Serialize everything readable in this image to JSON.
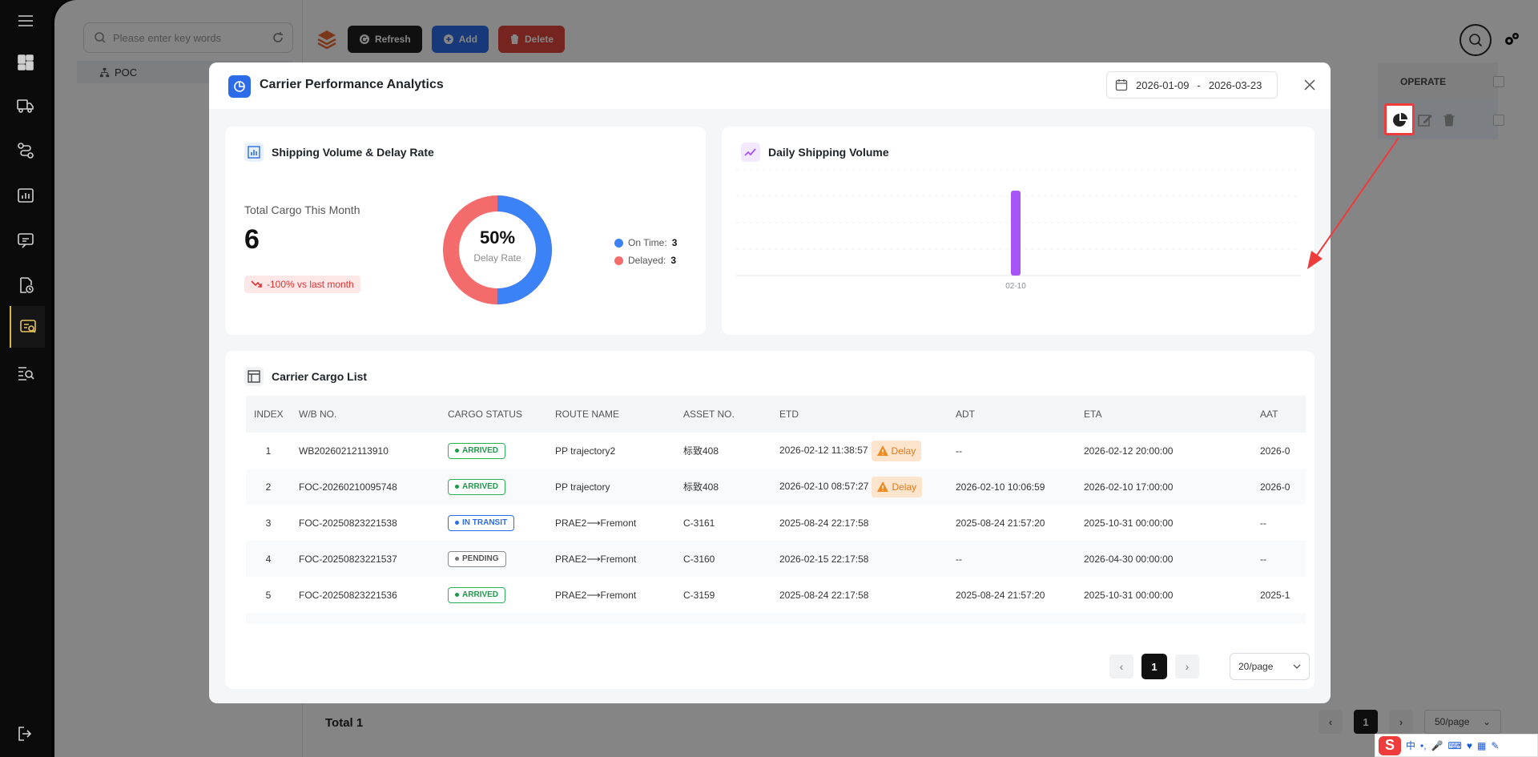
{
  "app": {
    "search_placeholder": "Please enter key words",
    "tree_root": "POC",
    "toolbar": {
      "refresh": "Refresh",
      "add": "Add",
      "delete": "Delete"
    },
    "operate_header": "OPERATE",
    "total": "Total 1",
    "page": "1",
    "page_size": "50/page"
  },
  "modal": {
    "title": "Carrier Performance Analytics",
    "date_start": "2026-01-09",
    "date_sep": "-",
    "date_end": "2026-03-23"
  },
  "summary": {
    "title": "Shipping Volume & Delay Rate",
    "kpi_label": "Total Cargo This Month",
    "kpi_value": "6",
    "kpi_change": "-100% vs last month",
    "delay_rate": "50%",
    "delay_rate_label": "Delay Rate",
    "legend": [
      {
        "label": "On Time:",
        "value": "3",
        "color": "#3b82f6"
      },
      {
        "label": "Delayed:",
        "value": "3",
        "color": "#f36b6b"
      }
    ],
    "colors": {
      "on_time": "#3b82f6",
      "delayed": "#f36b6b"
    }
  },
  "chart_data": {
    "type": "bar",
    "title": "Daily Shipping Volume",
    "categories": [
      "02-10"
    ],
    "values": [
      3
    ],
    "color": "#a855f7",
    "grid": true
  },
  "cargo_list": {
    "title": "Carrier Cargo List",
    "columns": [
      "INDEX",
      "W/B NO.",
      "CARGO STATUS",
      "ROUTE NAME",
      "ASSET NO.",
      "ETD",
      "ADT",
      "ETA",
      "AAT"
    ],
    "rows": [
      {
        "index": "1",
        "wb": "WB20260212113910",
        "status": "ARRIVED",
        "status_type": "arrived",
        "route": "PP trajectory2",
        "asset": "标致408",
        "etd": "2026-02-12 11:38:57",
        "delay": "Delay",
        "adt": "--",
        "eta": "2026-02-12 20:00:00",
        "aat": "2026-0"
      },
      {
        "index": "2",
        "wb": "FOC-20260210095748",
        "status": "ARRIVED",
        "status_type": "arrived",
        "route": "PP trajectory",
        "asset": "标致408",
        "etd": "2026-02-10 08:57:27",
        "delay": "Delay",
        "adt": "2026-02-10 10:06:59",
        "eta": "2026-02-10 17:00:00",
        "aat": "2026-0"
      },
      {
        "index": "3",
        "wb": "FOC-20250823221538",
        "status": "IN TRANSIT",
        "status_type": "transit",
        "route": "PRAE2⟶Fremont",
        "asset": "C-3161",
        "etd": "2025-08-24 22:17:58",
        "delay": "",
        "adt": "2025-08-24 21:57:20",
        "eta": "2025-10-31 00:00:00",
        "aat": "--"
      },
      {
        "index": "4",
        "wb": "FOC-20250823221537",
        "status": "PENDING",
        "status_type": "pending",
        "route": "PRAE2⟶Fremont",
        "asset": "C-3160",
        "etd": "2026-02-15 22:17:58",
        "delay": "",
        "adt": "--",
        "eta": "2026-04-30 00:00:00",
        "aat": "--"
      },
      {
        "index": "5",
        "wb": "FOC-20250823221536",
        "status": "ARRIVED",
        "status_type": "arrived",
        "route": "PRAE2⟶Fremont",
        "asset": "C-3159",
        "etd": "2025-08-24 22:17:58",
        "delay": "",
        "adt": "2025-08-24 21:57:20",
        "eta": "2025-10-31 00:00:00",
        "aat": "2025-1"
      }
    ],
    "page": "1",
    "page_size": "20/page"
  },
  "ime": {
    "logo": "S",
    "mode": "中"
  }
}
